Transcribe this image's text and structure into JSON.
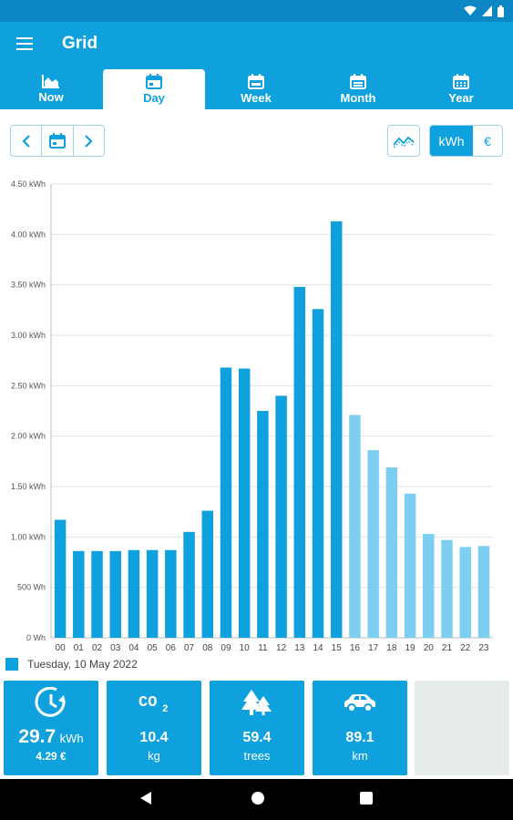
{
  "app": {
    "title": "Grid"
  },
  "tabs": [
    {
      "label": "Now",
      "icon": "area-chart-icon"
    },
    {
      "label": "Day",
      "icon": "calendar-icon"
    },
    {
      "label": "Week",
      "icon": "calendar-icon"
    },
    {
      "label": "Month",
      "icon": "calendar-icon"
    },
    {
      "label": "Year",
      "icon": "calendar-grid-icon"
    }
  ],
  "active_tab": "Day",
  "unit_toggle": {
    "options": [
      "kWh",
      "€"
    ],
    "selected": "kWh"
  },
  "chart_data": {
    "type": "bar",
    "categories": [
      "00",
      "01",
      "02",
      "03",
      "04",
      "05",
      "06",
      "07",
      "08",
      "09",
      "10",
      "11",
      "12",
      "13",
      "14",
      "15",
      "16",
      "17",
      "18",
      "19",
      "20",
      "21",
      "22",
      "23"
    ],
    "values": [
      1.17,
      0.86,
      0.86,
      0.86,
      0.87,
      0.87,
      0.87,
      1.05,
      1.26,
      2.68,
      2.67,
      2.25,
      2.4,
      3.48,
      3.26,
      4.13,
      2.21,
      1.86,
      1.69,
      1.43,
      1.03,
      0.97,
      0.9,
      0.91
    ],
    "actual_hours": 16,
    "y_ticks": [
      "0 Wh",
      "500 Wh",
      "1.00 kWh",
      "1.50 kWh",
      "2.00 kWh",
      "2.50 kWh",
      "3.00 kWh",
      "3.50 kWh",
      "4.00 kWh",
      "4.50 kWh"
    ],
    "ylim": [
      0,
      4.5
    ],
    "grid": true,
    "colors": {
      "actual": "#0fa1de",
      "forecast": "#7ccff0"
    }
  },
  "legend": {
    "label": "Tuesday, 10 May 2022"
  },
  "tiles": [
    {
      "icon": "clock-arrow-icon",
      "value": "29.7",
      "unit": "kWh",
      "sub": "4.29 €"
    },
    {
      "icon": "co2-icon",
      "value": "10.4",
      "unit": "kg"
    },
    {
      "icon": "trees-icon",
      "value": "59.4",
      "unit": "trees"
    },
    {
      "icon": "car-icon",
      "value": "89.1",
      "unit": "km"
    }
  ],
  "colors": {
    "primary": "#0fa1de",
    "statusbar": "#0a87c4",
    "tile_empty": "#e6ebec"
  }
}
